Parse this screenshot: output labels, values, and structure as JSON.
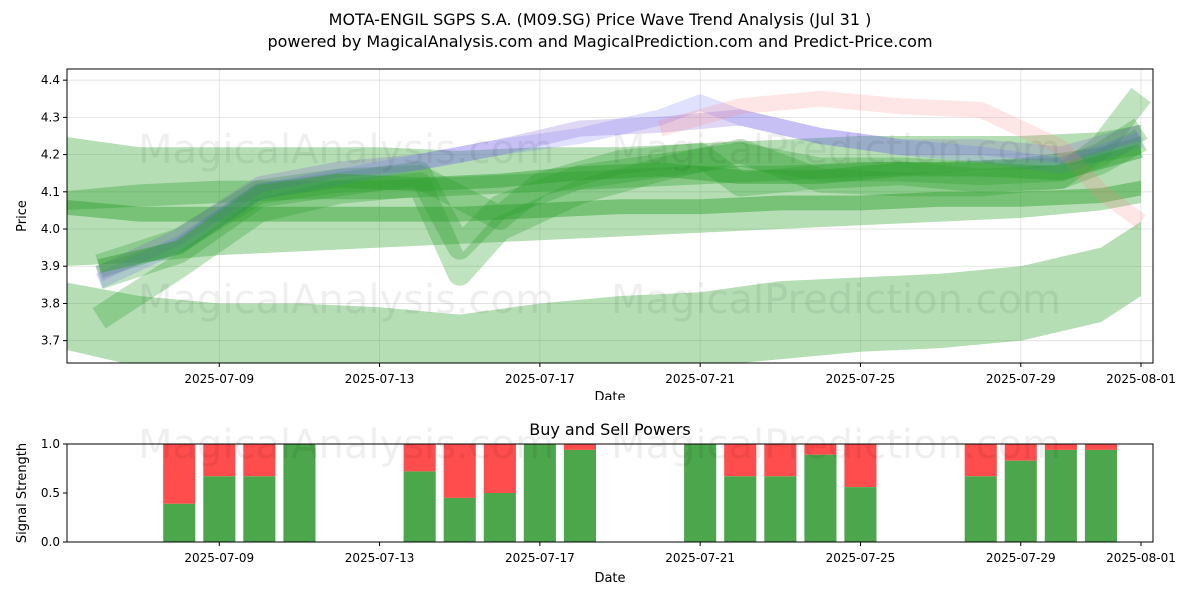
{
  "chart_data": [
    {
      "type": "area",
      "title_line1": "MOTA-ENGIL SGPS S.A. (M09.SG) Price Wave Trend Analysis (Jul 31 )",
      "title_line2": "powered by MagicalAnalysis.com and MagicalPrediction.com and Predict-Price.com",
      "xlabel": "Date",
      "ylabel": "Price",
      "x_tick_labels": [
        "2025-07-09",
        "2025-07-13",
        "2025-07-17",
        "2025-07-21",
        "2025-07-25",
        "2025-07-29",
        "2025-08-01"
      ],
      "y_ticks": [
        3.7,
        3.8,
        3.9,
        4.0,
        4.1,
        4.2,
        4.3,
        4.4
      ],
      "xlim": [
        "2025-07-05",
        "2025-08-01"
      ],
      "ylim": [
        3.64,
        4.43
      ],
      "grid": true,
      "watermarks": [
        "MagicalAnalysis.com",
        "MagicalPrediction.com"
      ],
      "bands": [
        {
          "color": "#2ca02c",
          "opacity": 0.35,
          "x": [
            0,
            2,
            4,
            6,
            8,
            10,
            12,
            14,
            16,
            18,
            20,
            22,
            24,
            26,
            27
          ],
          "upper": [
            4.25,
            4.22,
            4.22,
            4.22,
            4.22,
            4.21,
            4.22,
            4.22,
            4.23,
            4.24,
            4.25,
            4.25,
            4.25,
            4.26,
            4.28
          ],
          "lower": [
            4.05,
            4.06,
            4.07,
            4.08,
            4.08,
            4.09,
            4.1,
            4.11,
            4.12,
            4.13,
            4.14,
            4.15,
            4.16,
            4.18,
            4.2
          ]
        },
        {
          "color": "#2ca02c",
          "opacity": 0.35,
          "x": [
            0,
            2,
            4,
            6,
            8,
            10,
            12,
            14,
            16,
            18,
            20,
            22,
            24,
            26,
            27
          ],
          "upper": [
            4.1,
            4.12,
            4.13,
            4.13,
            4.13,
            4.14,
            4.15,
            4.16,
            4.17,
            4.17,
            4.18,
            4.18,
            4.19,
            4.22,
            4.25
          ],
          "lower": [
            3.9,
            3.91,
            3.93,
            3.94,
            3.95,
            3.96,
            3.97,
            3.98,
            3.99,
            4.0,
            4.01,
            4.02,
            4.03,
            4.05,
            4.07
          ]
        },
        {
          "color": "#2ca02c",
          "opacity": 0.35,
          "x": [
            0,
            2,
            4,
            6,
            8,
            10,
            12,
            14,
            16,
            18,
            20,
            22,
            24,
            26,
            27
          ],
          "upper": [
            3.86,
            3.82,
            3.8,
            3.8,
            3.79,
            3.77,
            3.8,
            3.82,
            3.83,
            3.86,
            3.87,
            3.88,
            3.9,
            3.95,
            4.02
          ],
          "lower": [
            3.68,
            3.63,
            3.62,
            3.62,
            3.61,
            3.59,
            3.61,
            3.62,
            3.63,
            3.65,
            3.67,
            3.68,
            3.7,
            3.75,
            3.82
          ]
        },
        {
          "color": "#2ca02c",
          "opacity": 0.45,
          "x": [
            0,
            2,
            4,
            6,
            8,
            10,
            12,
            14,
            16,
            18,
            20,
            22,
            24,
            26,
            27
          ],
          "upper": [
            4.08,
            4.06,
            4.06,
            4.06,
            4.06,
            4.06,
            4.07,
            4.08,
            4.08,
            4.09,
            4.09,
            4.1,
            4.1,
            4.11,
            4.13
          ],
          "lower": [
            4.04,
            4.02,
            4.02,
            4.02,
            4.02,
            4.02,
            4.03,
            4.04,
            4.04,
            4.05,
            4.05,
            4.06,
            4.06,
            4.07,
            4.09
          ]
        }
      ],
      "series": [
        {
          "color": "#2ca02c",
          "opacity": 0.3,
          "width": 24,
          "x": [
            1,
            3,
            5,
            7,
            9,
            11,
            12,
            14,
            16,
            17,
            19,
            21,
            23,
            25,
            26,
            27
          ],
          "values": [
            3.9,
            3.97,
            4.1,
            4.13,
            4.14,
            4.03,
            4.12,
            4.18,
            4.2,
            4.12,
            4.14,
            4.15,
            4.13,
            4.14,
            4.18,
            4.24
          ]
        },
        {
          "color": "#2ca02c",
          "opacity": 0.3,
          "width": 24,
          "x": [
            1,
            3,
            5,
            7,
            9,
            10,
            11,
            13,
            15,
            17,
            19,
            21,
            23,
            25,
            26,
            27
          ],
          "values": [
            3.87,
            3.94,
            4.09,
            4.12,
            4.15,
            3.95,
            4.06,
            4.14,
            4.17,
            4.2,
            4.16,
            4.16,
            4.15,
            4.16,
            4.2,
            4.27
          ]
        },
        {
          "color": "#2ca02c",
          "opacity": 0.3,
          "width": 24,
          "x": [
            1,
            3,
            5,
            7,
            9,
            10,
            11,
            13,
            15,
            17,
            19,
            21,
            23,
            25,
            26,
            27
          ],
          "values": [
            3.76,
            3.9,
            4.05,
            4.1,
            4.12,
            3.88,
            4.0,
            4.1,
            4.16,
            4.21,
            4.13,
            4.12,
            4.12,
            4.14,
            4.22,
            4.36
          ]
        },
        {
          "color": "#7f5fd0",
          "opacity": 0.25,
          "width": 16,
          "x": [
            1,
            3,
            5,
            7,
            9,
            11,
            13,
            15,
            17,
            19,
            21,
            23,
            25,
            27
          ],
          "values": [
            3.88,
            3.98,
            4.12,
            4.16,
            4.18,
            4.22,
            4.27,
            4.28,
            4.3,
            4.25,
            4.22,
            4.22,
            4.2,
            4.26
          ]
        },
        {
          "color": "#6666ff",
          "opacity": 0.2,
          "width": 16,
          "x": [
            1,
            3,
            5,
            7,
            9,
            11,
            13,
            15,
            16,
            17,
            19,
            21,
            23,
            25,
            27
          ],
          "values": [
            3.86,
            3.96,
            4.1,
            4.14,
            4.18,
            4.22,
            4.25,
            4.3,
            4.34,
            4.3,
            4.25,
            4.22,
            4.2,
            4.17,
            4.24
          ]
        },
        {
          "color": "#ff8080",
          "opacity": 0.2,
          "width": 16,
          "x": [
            15,
            17,
            19,
            21,
            23,
            25,
            26,
            27
          ],
          "values": [
            4.27,
            4.33,
            4.35,
            4.33,
            4.32,
            4.22,
            4.1,
            4.02
          ]
        },
        {
          "color": "#2ca02c",
          "opacity": 0.45,
          "width": 14,
          "x": [
            1,
            3,
            5,
            7,
            9,
            11,
            13,
            15,
            17,
            19,
            21,
            23,
            25,
            27
          ],
          "values": [
            3.9,
            3.95,
            4.1,
            4.13,
            4.12,
            4.13,
            4.15,
            4.16,
            4.14,
            4.14,
            4.16,
            4.16,
            4.15,
            4.21
          ]
        }
      ]
    },
    {
      "type": "bar",
      "title": "Buy and Sell Powers",
      "xlabel": "Date",
      "ylabel": "Signal Strength",
      "y_ticks": [
        "0.0",
        "0.5",
        "1.0"
      ],
      "ylim": [
        0,
        1
      ],
      "x_tick_labels": [
        "2025-07-09",
        "2025-07-13",
        "2025-07-17",
        "2025-07-21",
        "2025-07-25",
        "2025-07-29",
        "2025-08-01"
      ],
      "buy_color": "#4ca64c",
      "sell_color": "#ff4c4c",
      "categories": [
        "2025-07-08",
        "2025-07-09",
        "2025-07-10",
        "2025-07-11",
        "2025-07-14",
        "2025-07-15",
        "2025-07-16",
        "2025-07-17",
        "2025-07-18",
        "2025-07-21",
        "2025-07-22",
        "2025-07-23",
        "2025-07-24",
        "2025-07-25",
        "2025-07-28",
        "2025-07-29",
        "2025-07-30",
        "2025-07-31"
      ],
      "buy": [
        0.39,
        0.67,
        0.67,
        1.0,
        0.72,
        0.45,
        0.5,
        1.0,
        0.94,
        1.0,
        0.67,
        0.67,
        0.89,
        0.56,
        0.67,
        0.83,
        0.94,
        0.94
      ]
    }
  ]
}
